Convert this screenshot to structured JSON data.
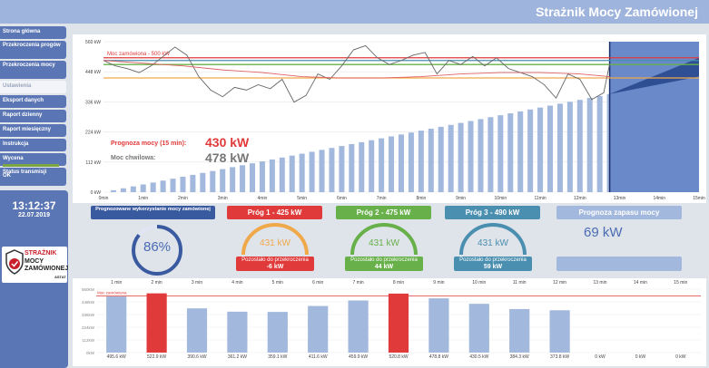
{
  "app": {
    "title": "Strażnik Mocy Zamówionej"
  },
  "sidebar": {
    "items": [
      {
        "label": "Strona główna",
        "active": false
      },
      {
        "label": "Przekroczenia progów",
        "active": false
      },
      {
        "label": "Przekroczenia mocy",
        "active": false
      },
      {
        "label": "Ustawienia",
        "active": true
      },
      {
        "label": "Eksport danych",
        "active": false
      },
      {
        "label": "Raport dzienny",
        "active": false
      },
      {
        "label": "Raport miesięczny",
        "active": false
      },
      {
        "label": "Instrukcja",
        "active": false
      },
      {
        "label": "Wycena",
        "active": false
      }
    ],
    "status_label": "Status transmisji",
    "status_value": "OK",
    "clock": "13:12:37",
    "date": "22.07.2019",
    "logo": {
      "line1": "STRAŻNIK",
      "line2": "MOCY",
      "line3": "ZAMÓWIONEJ",
      "brand": "ASTAT"
    }
  },
  "chart_data": [
    {
      "type": "line",
      "x_ticks": [
        "0min",
        "1min",
        "2min",
        "3min",
        "4min",
        "5min",
        "6min",
        "7min",
        "8min",
        "9min",
        "10min",
        "11min",
        "12min",
        "13min",
        "14min",
        "15min"
      ],
      "y_ticks": [
        "0 kW",
        "112 kW",
        "224 kW",
        "336 kW",
        "448 kW",
        "560 kW"
      ],
      "ylim": [
        0,
        560
      ],
      "reference_lines": [
        {
          "label": "Moc zamówiona - 500 kW",
          "value": 500,
          "color": "#e03a3a"
        },
        {
          "value": 490,
          "color": "#4a8fb0"
        },
        {
          "value": 475,
          "color": "#67b04a"
        },
        {
          "value": 425,
          "color": "#f0a94a"
        }
      ],
      "forecast_label": "Prognoza mocy (15 min):",
      "forecast_value": "430 kW",
      "instant_label": "Moc chwilowa:",
      "instant_value": "478 kW",
      "series": [
        {
          "name": "instant",
          "color": "#666666",
          "x": [
            0,
            0.3,
            0.6,
            0.9,
            1.2,
            1.5,
            1.8,
            2.1,
            2.4,
            2.7,
            3.0,
            3.3,
            3.6,
            3.9,
            4.2,
            4.5,
            4.8,
            5.1,
            5.4,
            5.7,
            6.0,
            6.3,
            6.6,
            6.9,
            7.2,
            7.5,
            7.8,
            8.1,
            8.4,
            8.7,
            9.0,
            9.3,
            9.6,
            9.9,
            10.2,
            10.5,
            10.8,
            11.1,
            11.4,
            11.7,
            12.0,
            12.3,
            12.6,
            12.75
          ],
          "y": [
            490,
            470,
            460,
            445,
            470,
            505,
            540,
            510,
            430,
            380,
            355,
            390,
            380,
            400,
            385,
            420,
            335,
            360,
            440,
            420,
            470,
            530,
            545,
            500,
            475,
            490,
            510,
            520,
            440,
            490,
            475,
            505,
            470,
            500,
            460,
            445,
            430,
            400,
            350,
            440,
            420,
            345,
            370,
            478
          ]
        },
        {
          "name": "forecast",
          "color": "#e06060",
          "x": [
            0,
            1,
            2,
            3,
            4,
            5,
            6,
            7,
            8,
            9,
            10,
            11,
            12,
            12.75
          ],
          "y": [
            490,
            480,
            470,
            455,
            445,
            430,
            425,
            425,
            430,
            440,
            445,
            445,
            440,
            430
          ]
        }
      ],
      "energy_bars": {
        "x_step": 0.25,
        "x_end": 12.75,
        "y_end": 365
      },
      "projection": {
        "from_x": 12.75,
        "from_y": 365,
        "to_x": 15,
        "upper": 500,
        "lower": 430
      }
    },
    {
      "type": "bar",
      "categories": [
        "1 min",
        "2 min",
        "3 min",
        "4 min",
        "5 min",
        "6 min",
        "7 min",
        "8 min",
        "9 min",
        "10 min",
        "11 min",
        "12 min",
        "13 min",
        "14 min",
        "15 min"
      ],
      "values": [
        495.6,
        522.9,
        390.6,
        361.2,
        359.1,
        411.6,
        459.9,
        520.8,
        478.8,
        430.5,
        384.3,
        373.8,
        0,
        0,
        0
      ],
      "labels": [
        "495.6 kW",
        "522.9 kW",
        "390.6 kW",
        "361.2 kW",
        "359.1 kW",
        "411.6 kW",
        "459.9 kW",
        "520.8 kW",
        "478.8 kW",
        "430.5 kW",
        "384.3 kW",
        "373.8 kW",
        "0 kW",
        "0 kW",
        "0 kW"
      ],
      "y_ticks": [
        "0kW",
        "112kW",
        "224kW",
        "336kW",
        "448kW",
        "560kW"
      ],
      "ylim": [
        0,
        560
      ],
      "reference_label": "Moc zamówiona",
      "reference_value": 500,
      "color_normal": "#a3b8dd",
      "color_over": "#e03a3a"
    }
  ],
  "panels": {
    "usage": {
      "header": "Prognozowane wykorzystanie mocy zamówionej",
      "value": "86%",
      "fraction": 0.86
    },
    "threshold1": {
      "header": "Próg 1 - 425 kW",
      "value": "431 kW",
      "remaining_label": "Pozostało do przekroczenia",
      "remaining_value": "-6 kW",
      "color": "#e03a3a",
      "gauge_color": "#f0a94a"
    },
    "threshold2": {
      "header": "Próg 2 - 475 kW",
      "value": "431 kW",
      "remaining_label": "Pozostało do przekroczenia",
      "remaining_value": "44 kW",
      "color": "#67b04a",
      "gauge_color": "#67b04a"
    },
    "threshold3": {
      "header": "Próg 3 - 490 kW",
      "value": "431 kW",
      "remaining_label": "Pozostało do przekroczenia",
      "remaining_value": "59 kW",
      "color": "#4a8fb0",
      "gauge_color": "#4a8fb0"
    },
    "reserve": {
      "header": "Prognoza zapasu mocy",
      "value": "69 kW",
      "color": "#a3b8dd"
    }
  }
}
